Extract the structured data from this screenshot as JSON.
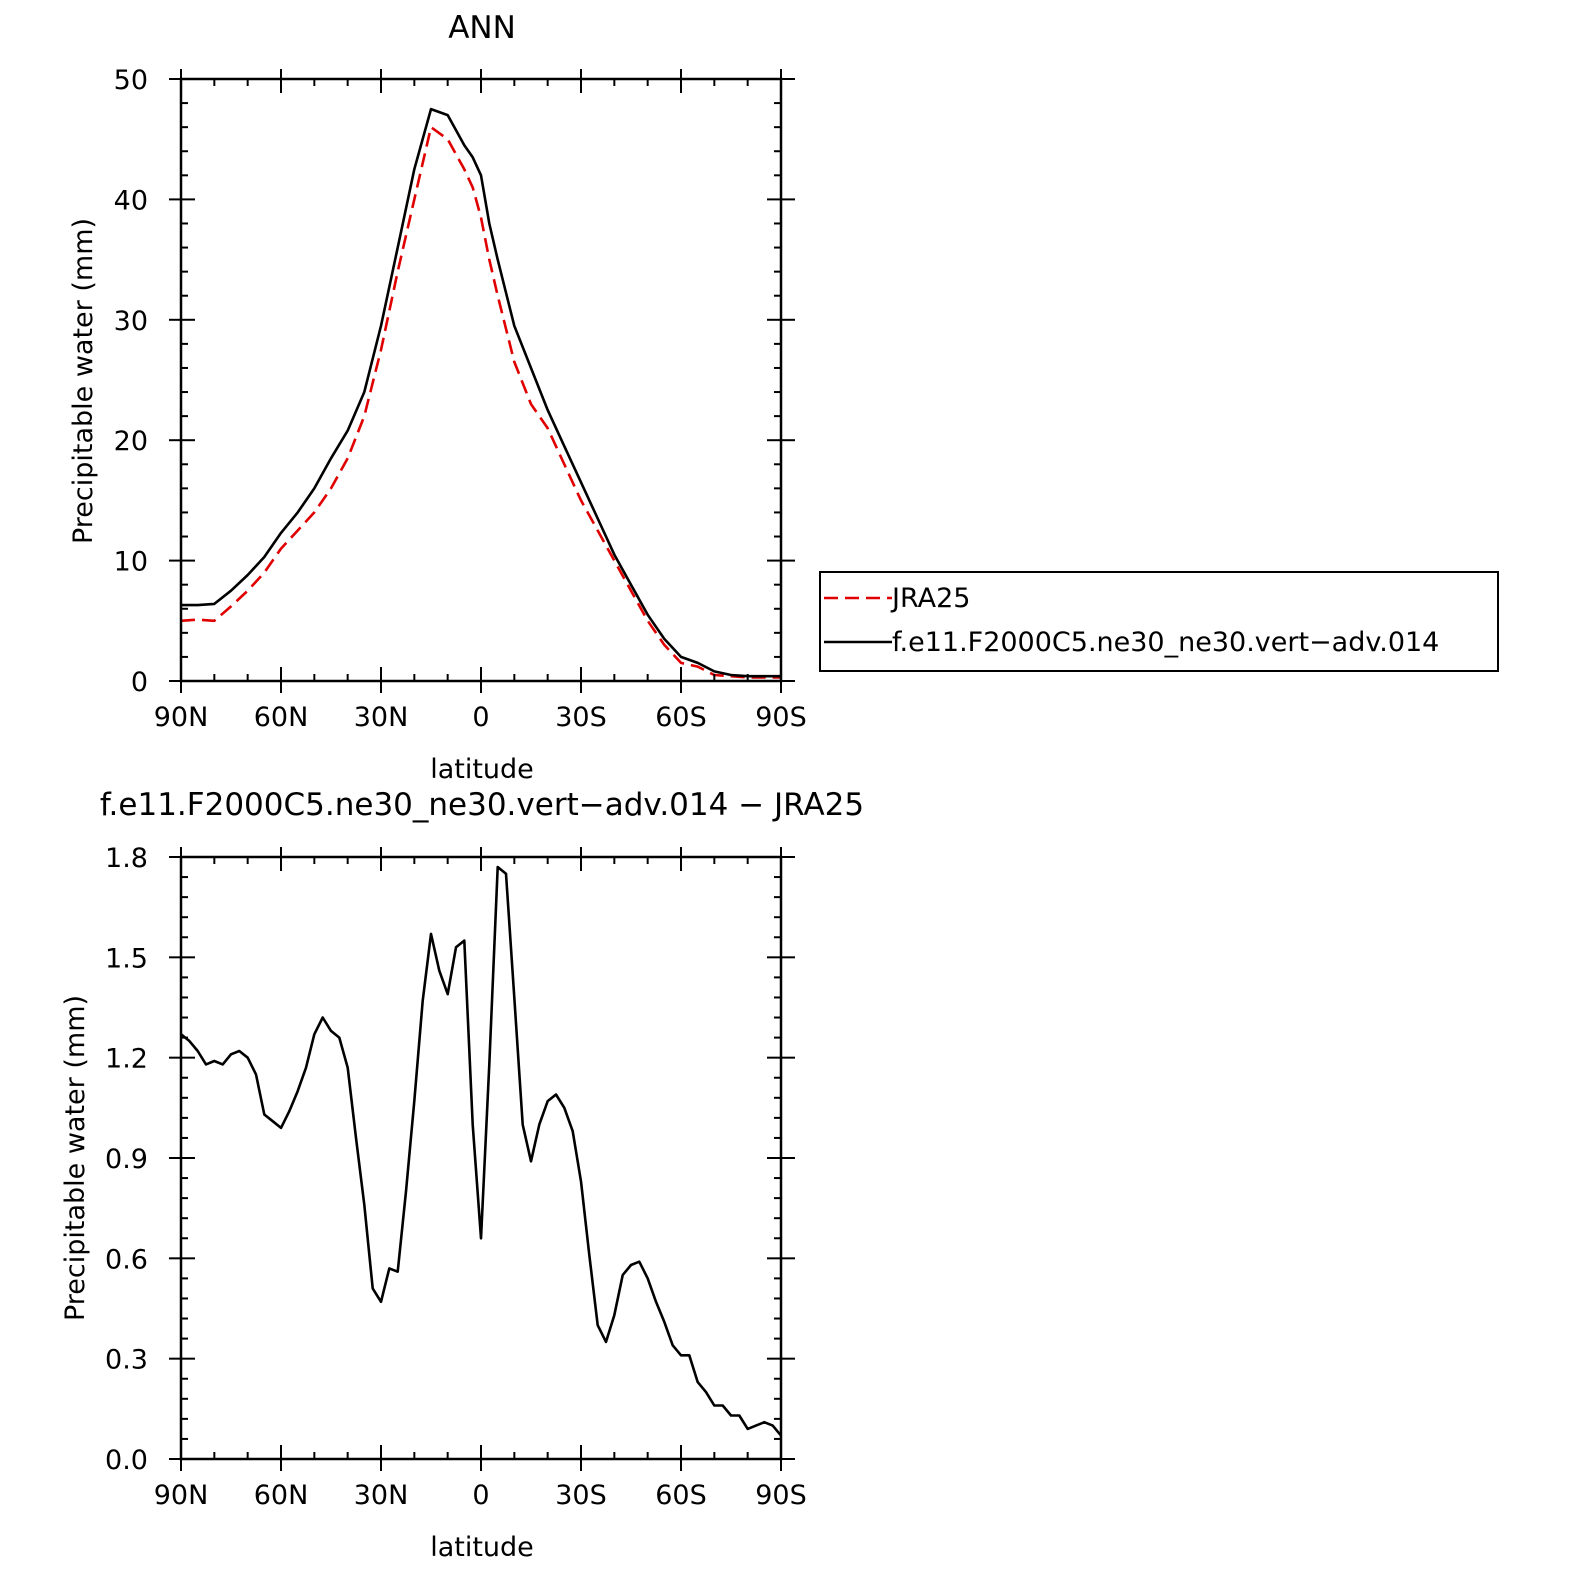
{
  "colors": {
    "model": "#000000",
    "jra": "#e00000",
    "axes": "#000000"
  },
  "legend": {
    "placement": "right of top panel",
    "entries": [
      {
        "label": "JRA25",
        "color": "#e00000",
        "dash": "dashed"
      },
      {
        "label": "f.e11.F2000C5.ne30_ne30.vert−adv.014",
        "color": "#000000",
        "dash": "solid"
      }
    ]
  },
  "chart_data": [
    {
      "type": "line",
      "title": "ANN",
      "xlabel": "latitude",
      "ylabel": "Precipitable water (mm)",
      "xlim": [
        90,
        -90
      ],
      "ylim": [
        0,
        50
      ],
      "xticks": [
        90,
        60,
        30,
        0,
        -30,
        -60,
        -90
      ],
      "xtick_labels": [
        "90N",
        "60N",
        "30N",
        "0",
        "30S",
        "60S",
        "90S"
      ],
      "yticks": [
        0,
        10,
        20,
        30,
        40,
        50
      ],
      "ytick_labels": [
        "0",
        "10",
        "20",
        "30",
        "40",
        "50"
      ],
      "series": [
        {
          "name": "JRA25",
          "color": "#e00000",
          "dash": "dashed",
          "x": [
            90,
            85,
            80,
            75,
            70,
            65,
            60,
            55,
            50,
            45,
            40,
            35,
            30,
            25,
            20,
            15,
            10,
            5,
            2.5,
            0,
            -2.5,
            -5,
            -10,
            -15,
            -20,
            -25,
            -30,
            -35,
            -40,
            -45,
            -50,
            -55,
            -60,
            -65,
            -70,
            -75,
            -80,
            -85,
            -90
          ],
          "values": [
            5.0,
            5.1,
            5.0,
            6.2,
            7.5,
            9.0,
            11.0,
            12.5,
            14.0,
            16.0,
            18.5,
            22.0,
            27.5,
            34.0,
            40.0,
            46.0,
            45.0,
            42.5,
            41.0,
            38.5,
            35.0,
            32.0,
            26.5,
            23.0,
            21.0,
            18.0,
            15.0,
            12.5,
            10.0,
            7.5,
            5.0,
            3.0,
            1.5,
            1.2,
            0.5,
            0.4,
            0.3,
            0.3,
            0.3
          ]
        },
        {
          "name": "f.e11.F2000C5.ne30_ne30.vert−adv.014",
          "color": "#000000",
          "dash": "solid",
          "x": [
            90,
            85,
            80,
            75,
            70,
            65,
            60,
            55,
            50,
            45,
            40,
            35,
            30,
            25,
            20,
            15,
            10,
            5,
            2.5,
            0,
            -2.5,
            -5,
            -10,
            -15,
            -20,
            -25,
            -30,
            -35,
            -40,
            -45,
            -50,
            -55,
            -60,
            -65,
            -70,
            -75,
            -80,
            -85,
            -90
          ],
          "values": [
            6.3,
            6.3,
            6.4,
            7.5,
            8.8,
            10.3,
            12.3,
            14.0,
            16.0,
            18.5,
            20.8,
            24.0,
            29.5,
            36.0,
            42.5,
            47.5,
            47.0,
            44.5,
            43.5,
            42.0,
            38.0,
            35.0,
            29.5,
            26.0,
            22.5,
            19.5,
            16.5,
            13.5,
            10.5,
            8.0,
            5.5,
            3.5,
            2.0,
            1.5,
            0.8,
            0.5,
            0.4,
            0.4,
            0.4
          ]
        }
      ]
    },
    {
      "type": "line",
      "title": "f.e11.F2000C5.ne30_ne30.vert−adv.014 − JRA25",
      "xlabel": "latitude",
      "ylabel": "Precipitable water (mm)",
      "xlim": [
        90,
        -90
      ],
      "ylim": [
        0,
        1.8
      ],
      "xticks": [
        90,
        60,
        30,
        0,
        -30,
        -60,
        -90
      ],
      "xtick_labels": [
        "90N",
        "60N",
        "30N",
        "0",
        "30S",
        "60S",
        "90S"
      ],
      "yticks": [
        0,
        0.3,
        0.6,
        0.9,
        1.2,
        1.5,
        1.8
      ],
      "ytick_labels": [
        "0.0",
        "0.3",
        "0.6",
        "0.9",
        "1.2",
        "1.5",
        "1.8"
      ],
      "series": [
        {
          "color": "#000000",
          "dash": "solid",
          "x": [
            90,
            87.5,
            85,
            82.5,
            80,
            77.5,
            75,
            72.5,
            70,
            67.5,
            65,
            62.5,
            60,
            57.5,
            55,
            52.5,
            50,
            47.5,
            45,
            42.5,
            40,
            37.5,
            35,
            32.5,
            30,
            27.5,
            25,
            22.5,
            20,
            17.5,
            15,
            12.5,
            10,
            7.5,
            5,
            2.5,
            0,
            -2.5,
            -5,
            -7.5,
            -10,
            -12.5,
            -15,
            -17.5,
            -20,
            -22.5,
            -25,
            -27.5,
            -30,
            -32.5,
            -35,
            -37.5,
            -40,
            -42.5,
            -45,
            -47.5,
            -50,
            -52.5,
            -55,
            -57.5,
            -60,
            -62.5,
            -65,
            -67.5,
            -70,
            -72.5,
            -75,
            -77.5,
            -80,
            -82.5,
            -85,
            -87.5,
            -90
          ],
          "values": [
            1.27,
            1.25,
            1.22,
            1.18,
            1.19,
            1.18,
            1.21,
            1.22,
            1.2,
            1.15,
            1.03,
            1.01,
            0.99,
            1.04,
            1.1,
            1.17,
            1.27,
            1.32,
            1.28,
            1.26,
            1.17,
            0.96,
            0.76,
            0.51,
            0.47,
            0.57,
            0.56,
            0.8,
            1.07,
            1.37,
            1.57,
            1.46,
            1.39,
            1.53,
            1.55,
            1.0,
            0.66,
            1.18,
            1.77,
            1.75,
            1.38,
            1.0,
            0.89,
            1.0,
            1.07,
            1.09,
            1.05,
            0.98,
            0.83,
            0.61,
            0.4,
            0.35,
            0.43,
            0.55,
            0.58,
            0.59,
            0.54,
            0.47,
            0.41,
            0.34,
            0.31,
            0.31,
            0.23,
            0.2,
            0.16,
            0.16,
            0.13,
            0.13,
            0.09,
            0.1,
            0.11,
            0.1,
            0.07
          ]
        }
      ]
    }
  ]
}
